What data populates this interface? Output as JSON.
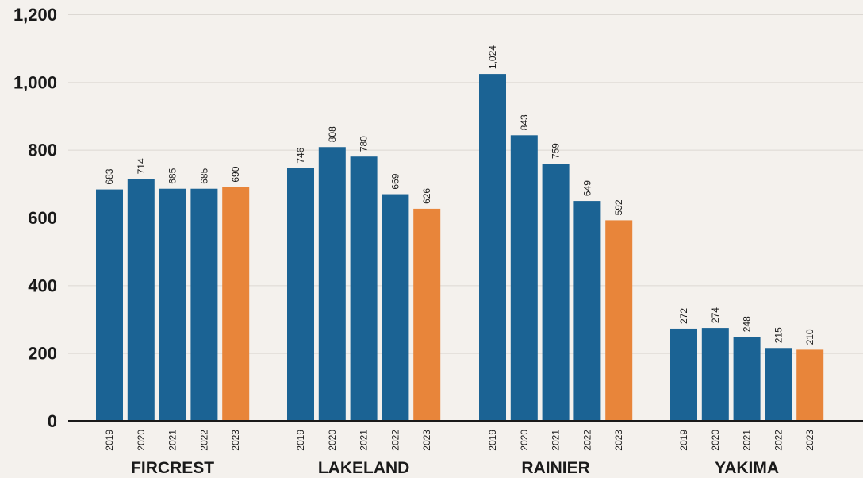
{
  "chart_data": {
    "type": "bar",
    "title": "",
    "xlabel": "",
    "ylabel": "",
    "ylim": [
      0,
      1200
    ],
    "yticks": [
      0,
      200,
      400,
      600,
      800,
      1000,
      1200
    ],
    "ytick_labels": [
      "0",
      "200",
      "400",
      "600",
      "800",
      "1,000",
      "1,200"
    ],
    "grid": true,
    "years": [
      "2019",
      "2020",
      "2021",
      "2022",
      "2023"
    ],
    "groups": [
      {
        "name": "FIRCREST",
        "values": [
          683,
          714,
          685,
          685,
          690
        ],
        "labels": [
          "683",
          "714",
          "685",
          "685",
          "690"
        ]
      },
      {
        "name": "LAKELAND",
        "values": [
          746,
          808,
          780,
          669,
          626
        ],
        "labels": [
          "746",
          "808",
          "780",
          "669",
          "626"
        ]
      },
      {
        "name": "RAINIER",
        "values": [
          1024,
          843,
          759,
          649,
          592
        ],
        "labels": [
          "1,024",
          "843",
          "759",
          "649",
          "592"
        ]
      },
      {
        "name": "YAKIMA",
        "values": [
          272,
          274,
          248,
          215,
          210
        ],
        "labels": [
          "272",
          "274",
          "248",
          "215",
          "210"
        ]
      }
    ],
    "colors": {
      "default": "#1b6394",
      "highlight": "#e8853a"
    },
    "highlight_year": "2023"
  }
}
